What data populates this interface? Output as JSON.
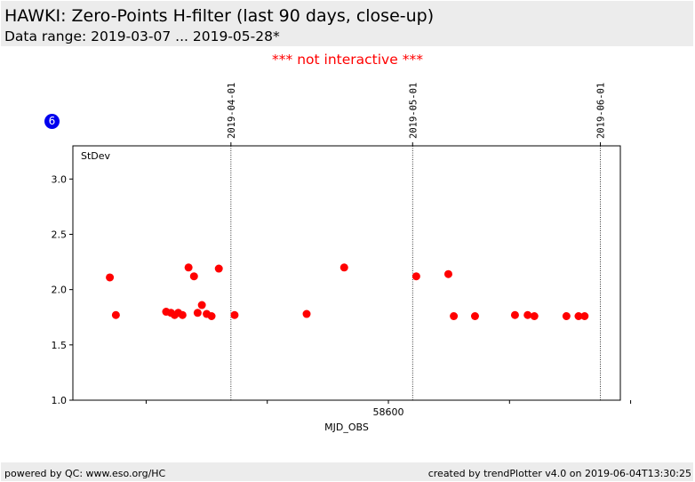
{
  "header": {
    "title": "HAWKI: Zero-Points H-filter (last 90 days, close-up)",
    "subtitle": "Data range: 2019-03-07 ... 2019-05-28*"
  },
  "notice": "*** not interactive ***",
  "badge": {
    "label": "6",
    "color": "#0000ee"
  },
  "footer": {
    "left": "powered by QC: www.eso.org/HC",
    "right": "created by trendPlotter v4.0 on 2019-06-04T13:30:25"
  },
  "chart_data": {
    "type": "scatter",
    "xlabel": "MJD_OBS",
    "ylabel": "",
    "panel_label": "StDev",
    "xlim": [
      58547.9,
      58638.3
    ],
    "ylim": [
      1.0,
      3.3
    ],
    "x_ticks": [
      58560,
      58580,
      58600,
      58620,
      58640
    ],
    "x_tick_labels": [
      "",
      "",
      "58600",
      "",
      ""
    ],
    "y_ticks": [
      1.0,
      1.5,
      2.0,
      2.5,
      3.0
    ],
    "y_tick_labels": [
      "1.0",
      "1.5",
      "2.0",
      "2.5",
      "3.0"
    ],
    "date_markers": [
      {
        "label": "2019-04-01",
        "mjd": 58574
      },
      {
        "label": "2019-05-01",
        "mjd": 58604
      },
      {
        "label": "2019-06-01",
        "mjd": 58635
      }
    ],
    "point_color": "#ff0000",
    "series": [
      {
        "x": [
          58554.0,
          58555.0,
          58563.3,
          58564.1,
          58564.7,
          58565.3,
          58566.0,
          58567.0,
          58567.9,
          58568.5,
          58569.2,
          58570.0,
          58570.8,
          58572.0,
          58574.6,
          58586.5,
          58592.7,
          58604.6,
          58609.9,
          58610.8,
          58614.3,
          58620.9,
          58623.0,
          58624.1,
          58629.4,
          58631.4,
          58632.4
        ],
        "y": [
          2.11,
          1.77,
          1.8,
          1.79,
          1.77,
          1.79,
          1.77,
          2.2,
          2.12,
          1.79,
          1.86,
          1.78,
          1.76,
          2.19,
          1.77,
          1.78,
          2.2,
          2.12,
          2.14,
          1.76,
          1.76,
          1.77,
          1.77,
          1.76,
          1.76,
          1.76,
          1.76
        ]
      }
    ]
  }
}
